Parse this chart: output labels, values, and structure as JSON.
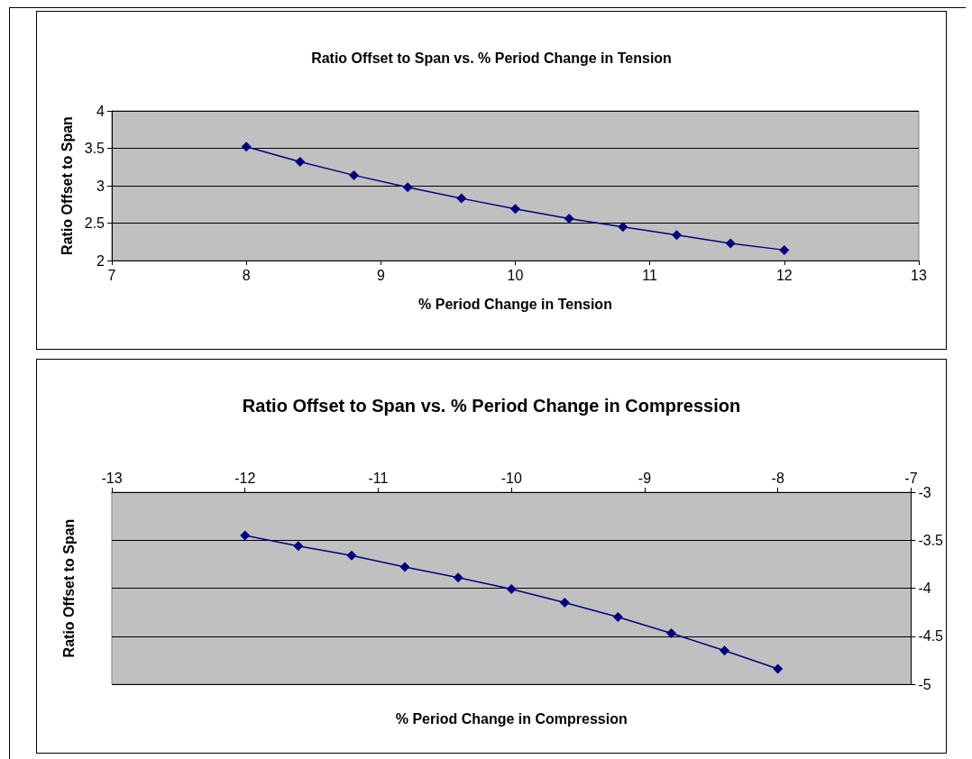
{
  "chart_data": [
    {
      "type": "line",
      "title": "Ratio Offset to Span vs. % Period Change in Tension",
      "xlabel": "% Period Change in Tension",
      "ylabel": "Ratio Offset to Span",
      "x": [
        8,
        8.4,
        8.8,
        9.2,
        9.6,
        10,
        10.4,
        10.8,
        11.2,
        11.6,
        12
      ],
      "series": [
        {
          "color": "#000080",
          "values": [
            3.52,
            3.32,
            3.14,
            2.98,
            2.83,
            2.69,
            2.56,
            2.45,
            2.34,
            2.23,
            2.14
          ]
        }
      ],
      "xlim": [
        7,
        13
      ],
      "xticks": [
        7,
        8,
        9,
        10,
        11,
        12,
        13
      ],
      "ylim": [
        2,
        4
      ],
      "yticks": [
        2,
        2.5,
        3,
        3.5,
        4
      ],
      "grid": "y",
      "marker": "diamond",
      "line_style": "solid"
    },
    {
      "type": "line",
      "title": "Ratio Offset to Span vs. % Period Change in Compression",
      "xlabel": "% Period Change in Compression",
      "ylabel": "Ratio Offset to Span",
      "x": [
        -12,
        -11.6,
        -11.2,
        -10.8,
        -10.4,
        -10,
        -9.6,
        -9.2,
        -8.8,
        -8.4,
        -8
      ],
      "series": [
        {
          "color": "#000080",
          "values": [
            -3.45,
            -3.56,
            -3.66,
            -3.78,
            -3.89,
            -4.01,
            -4.15,
            -4.3,
            -4.47,
            -4.65,
            -4.84
          ]
        }
      ],
      "xlim": [
        -13,
        -7
      ],
      "xticks": [
        -13,
        -12,
        -11,
        -10,
        -9,
        -8,
        -7
      ],
      "ylim": [
        -5,
        -3
      ],
      "yticks": [
        -5,
        -4.5,
        -4,
        -3.5,
        -3
      ],
      "grid": "y",
      "marker": "diamond",
      "line_style": "solid"
    }
  ]
}
